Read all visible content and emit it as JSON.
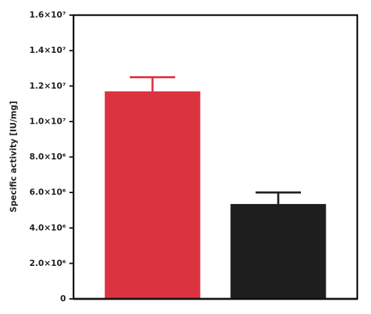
{
  "chart_data": {
    "type": "bar",
    "y_label": "Specific activity [IU/mg]",
    "categories": [
      null,
      null
    ],
    "values": [
      11700000,
      5350000
    ],
    "errors": [
      800000,
      650000
    ],
    "colors": [
      "#dc3340",
      "#1e1e1e"
    ],
    "ylim": [
      0,
      16000000
    ],
    "yticks": [
      0,
      {
        "value": 2000000,
        "label": "2.0×10⁶"
      },
      {
        "value": 4000000,
        "label": "4.0×10⁶"
      },
      {
        "value": 6000000,
        "label": "6.0×10⁶"
      },
      {
        "value": 8000000,
        "label": "8.0×10⁶"
      },
      {
        "value": 10000000,
        "label": "1.0×10⁷"
      },
      {
        "value": 12000000,
        "label": "1.2×10⁷"
      },
      {
        "value": 14000000,
        "label": "1.4×10⁷"
      },
      {
        "value": 16000000,
        "label": "1.6×10⁷"
      }
    ],
    "grid": false
  }
}
